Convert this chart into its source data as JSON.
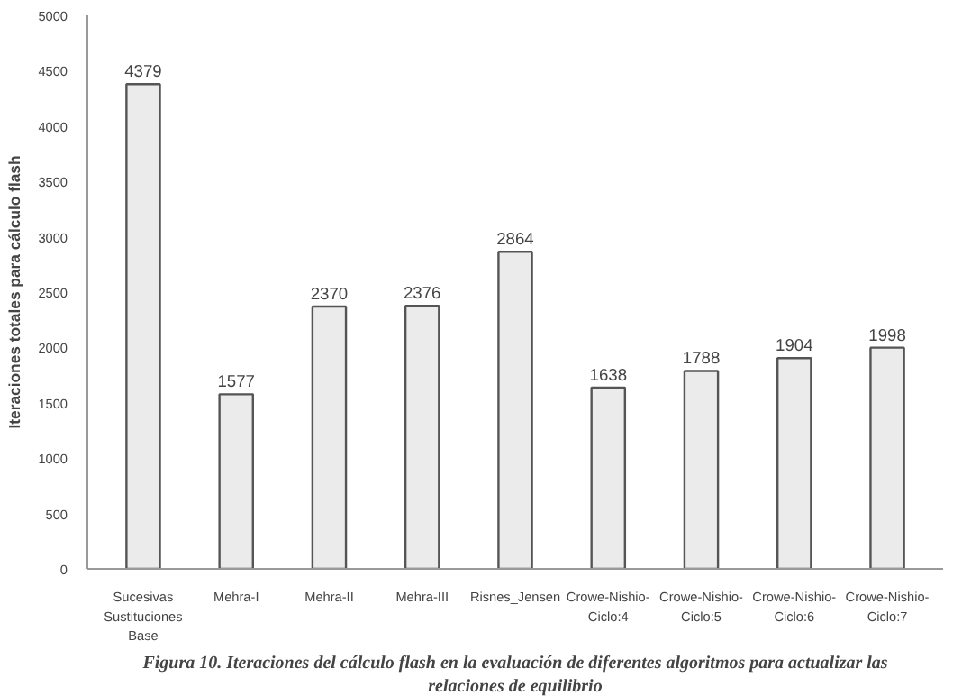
{
  "chart_data": {
    "type": "bar",
    "ylabel": "Iteraciones totales para cálculo flash",
    "categories": [
      "Sucesivas\nSustituciones\nBase",
      "Mehra-I",
      "Mehra-II",
      "Mehra-III",
      "Risnes_Jensen",
      "Crowe-Nishio-\nCiclo:4",
      "Crowe-Nishio-\nCiclo:5",
      "Crowe-Nishio-\nCiclo:6",
      "Crowe-Nishio-\nCiclo:7"
    ],
    "values": [
      4379,
      1577,
      2370,
      2376,
      2864,
      1638,
      1788,
      1904,
      1998
    ],
    "color": "#ebebeb",
    "ylim": [
      0,
      5000
    ],
    "yticks": [
      0,
      500,
      1000,
      1500,
      2000,
      2500,
      3000,
      3500,
      4000,
      4500,
      5000
    ],
    "grid": false,
    "data_labels": true,
    "annotations": [
      "Figura 10. Iteraciones del cálculo flash en la evaluación de diferentes algoritmos para actualizar las relaciones de equilibrio"
    ]
  }
}
